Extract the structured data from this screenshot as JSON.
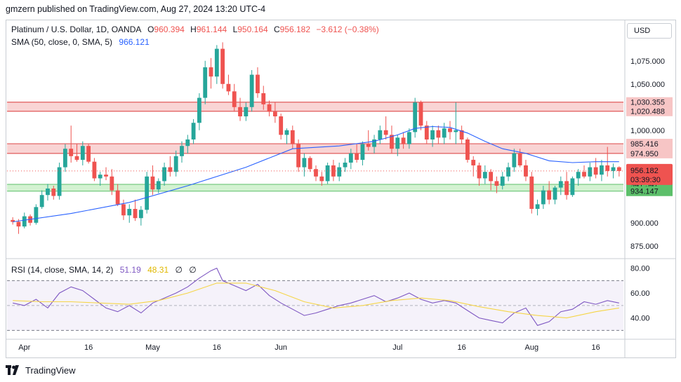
{
  "publisher_line": "gmzern published on TradingView.com, Aug 27, 2024 13:20 UTC-4",
  "currency_button": "USD",
  "footer": {
    "brand": "TradingView"
  },
  "legend": {
    "symbol": "Platinum / U.S. Dollar, 1D, OANDA",
    "o_label": "O",
    "o_value": "960.394",
    "h_label": "H",
    "h_value": "961.144",
    "l_label": "L",
    "l_value": "950.164",
    "c_label": "C",
    "c_value": "956.182",
    "change": "−3.612 (−0.38%)",
    "sma_label": "SMA (50, close, 0, SMA, 5)",
    "sma_value": "966.121",
    "rsi_label": "RSI (14, close, SMA, 14, 2)",
    "rsi_value": "51.19",
    "rsi_ma_value": "48.31",
    "rsi_extra1": "∅",
    "rsi_extra2": "∅"
  },
  "colors": {
    "up": "#26a69a",
    "down": "#ef5350",
    "sma": "#2962ff",
    "rsi": "#7e57c2",
    "rsi_ma": "#f5d547",
    "resistance_fill": "#f7c5c5",
    "support_fill": "#c8efc5",
    "zone_line": "#e05b5b",
    "support_line": "#5cbf6a"
  },
  "chart_data": [
    {
      "type": "candlestick",
      "title": "Platinum / U.S. Dollar, 1D, OANDA",
      "ylim": [
        862,
        1118
      ],
      "y_ticks": [
        875,
        900,
        925,
        950,
        975,
        1000,
        1025,
        1050,
        1075
      ],
      "y_tick_labels": [
        "875.000",
        "900.000",
        "",
        "",
        "",
        "1,000.000",
        "",
        "1,050.000",
        "1,075.000"
      ],
      "x_tick_labels": [
        {
          "label": "Apr",
          "index": 2
        },
        {
          "label": "16",
          "index": 13
        },
        {
          "label": "May",
          "index": 24
        },
        {
          "label": "16",
          "index": 35
        },
        {
          "label": "Jun",
          "index": 46
        },
        {
          "label": "Jul",
          "index": 66
        },
        {
          "label": "16",
          "index": 77
        },
        {
          "label": "Aug",
          "index": 89
        },
        {
          "label": "16",
          "index": 100
        }
      ],
      "candles": [
        [
          903,
          906,
          898,
          901
        ],
        [
          901,
          904,
          888,
          896
        ],
        [
          896,
          911,
          894,
          907
        ],
        [
          907,
          909,
          897,
          900
        ],
        [
          900,
          920,
          898,
          917
        ],
        [
          917,
          935,
          915,
          930
        ],
        [
          930,
          942,
          924,
          937
        ],
        [
          937,
          940,
          925,
          929
        ],
        [
          929,
          965,
          925,
          960
        ],
        [
          960,
          985,
          955,
          980
        ],
        [
          980,
          1005,
          965,
          972
        ],
        [
          972,
          985,
          966,
          968
        ],
        [
          968,
          988,
          962,
          983
        ],
        [
          983,
          985,
          964,
          966
        ],
        [
          966,
          970,
          945,
          948
        ],
        [
          948,
          955,
          940,
          952
        ],
        [
          952,
          960,
          946,
          950
        ],
        [
          950,
          958,
          930,
          935
        ],
        [
          935,
          942,
          918,
          920
        ],
        [
          920,
          925,
          903,
          908
        ],
        [
          908,
          920,
          900,
          915
        ],
        [
          915,
          925,
          902,
          905
        ],
        [
          905,
          918,
          897,
          914
        ],
        [
          914,
          955,
          910,
          950
        ],
        [
          950,
          962,
          930,
          936
        ],
        [
          936,
          948,
          932,
          945
        ],
        [
          945,
          965,
          940,
          960
        ],
        [
          960,
          972,
          950,
          955
        ],
        [
          955,
          978,
          950,
          972
        ],
        [
          972,
          988,
          965,
          983
        ],
        [
          983,
          995,
          975,
          990
        ],
        [
          990,
          1012,
          985,
          1008
        ],
        [
          1008,
          1040,
          1000,
          1035
        ],
        [
          1035,
          1075,
          1028,
          1068
        ],
        [
          1068,
          1078,
          1045,
          1058
        ],
        [
          1058,
          1092,
          1050,
          1088
        ],
        [
          1088,
          1095,
          1045,
          1050
        ],
        [
          1050,
          1060,
          1038,
          1042
        ],
        [
          1042,
          1050,
          1020,
          1025
        ],
        [
          1025,
          1035,
          1010,
          1015
        ],
        [
          1015,
          1030,
          1010,
          1025
        ],
        [
          1025,
          1065,
          1020,
          1060
        ],
        [
          1060,
          1068,
          1035,
          1040
        ],
        [
          1040,
          1048,
          1022,
          1028
        ],
        [
          1028,
          1032,
          1015,
          1020
        ],
        [
          1020,
          1030,
          1008,
          1015
        ],
        [
          1015,
          1018,
          990,
          995
        ],
        [
          995,
          1002,
          985,
          1000
        ],
        [
          1000,
          1005,
          980,
          985
        ],
        [
          985,
          990,
          955,
          960
        ],
        [
          960,
          975,
          950,
          970
        ],
        [
          970,
          972,
          955,
          958
        ],
        [
          958,
          962,
          945,
          950
        ],
        [
          950,
          955,
          940,
          945
        ],
        [
          945,
          965,
          942,
          962
        ],
        [
          962,
          968,
          945,
          950
        ],
        [
          950,
          965,
          945,
          960
        ],
        [
          960,
          970,
          955,
          965
        ],
        [
          965,
          980,
          958,
          975
        ],
        [
          975,
          985,
          965,
          968
        ],
        [
          968,
          988,
          962,
          985
        ],
        [
          985,
          1000,
          978,
          982
        ],
        [
          982,
          995,
          975,
          990
        ],
        [
          990,
          1005,
          985,
          1000
        ],
        [
          1000,
          1015,
          990,
          995
        ],
        [
          995,
          1005,
          975,
          980
        ],
        [
          980,
          995,
          972,
          992
        ],
        [
          992,
          998,
          980,
          985
        ],
        [
          985,
          1002,
          980,
          998
        ],
        [
          998,
          1035,
          992,
          1030
        ],
        [
          1030,
          1032,
          1000,
          1005
        ],
        [
          1005,
          1010,
          985,
          990
        ],
        [
          990,
          1005,
          982,
          1000
        ],
        [
          1000,
          1005,
          985,
          992
        ],
        [
          992,
          1008,
          985,
          1002
        ],
        [
          1002,
          1010,
          990,
          998
        ],
        [
          998,
          1030,
          985,
          1000
        ],
        [
          1000,
          1005,
          985,
          990
        ],
        [
          990,
          992,
          965,
          968
        ],
        [
          968,
          972,
          950,
          962
        ],
        [
          962,
          965,
          940,
          948
        ],
        [
          948,
          962,
          942,
          955
        ],
        [
          955,
          958,
          935,
          945
        ],
        [
          945,
          950,
          932,
          940
        ],
        [
          940,
          955,
          936,
          950
        ],
        [
          950,
          965,
          945,
          960
        ],
        [
          960,
          980,
          955,
          975
        ],
        [
          975,
          980,
          960,
          962
        ],
        [
          962,
          968,
          945,
          950
        ],
        [
          950,
          955,
          910,
          915
        ],
        [
          915,
          925,
          908,
          920
        ],
        [
          920,
          940,
          915,
          935
        ],
        [
          935,
          945,
          920,
          925
        ],
        [
          925,
          940,
          920,
          938
        ],
        [
          938,
          950,
          930,
          945
        ],
        [
          945,
          955,
          925,
          930
        ],
        [
          930,
          950,
          928,
          948
        ],
        [
          948,
          958,
          940,
          955
        ],
        [
          955,
          962,
          948,
          950
        ],
        [
          950,
          965,
          945,
          960
        ],
        [
          960,
          970,
          948,
          952
        ],
        [
          952,
          968,
          945,
          962
        ],
        [
          962,
          982,
          950,
          956
        ],
        [
          956,
          964,
          948,
          960
        ],
        [
          960,
          961,
          950,
          956
        ]
      ],
      "sma_50": [
        [
          0,
          901
        ],
        [
          10,
          910
        ],
        [
          20,
          922
        ],
        [
          30,
          940
        ],
        [
          40,
          960
        ],
        [
          48,
          980
        ],
        [
          56,
          983
        ],
        [
          62,
          988
        ],
        [
          66,
          995
        ],
        [
          69,
          1002
        ],
        [
          72,
          1004
        ],
        [
          75,
          1003
        ],
        [
          78,
          997
        ],
        [
          81,
          988
        ],
        [
          84,
          980
        ],
        [
          88,
          975
        ],
        [
          92,
          967
        ],
        [
          96,
          965
        ],
        [
          100,
          966
        ],
        [
          104,
          966
        ]
      ],
      "price_label": "956.182",
      "countdown": "03:39:30",
      "resistance_zones": [
        {
          "top": 1030.355,
          "bottom": 1020.488,
          "top_label": "1,030.355",
          "bottom_label": "1,020.488"
        },
        {
          "top": 985.416,
          "bottom": 974.95,
          "top_label": "985.416",
          "bottom_label": "974.950"
        }
      ],
      "support_zone": {
        "top": 941.547,
        "bottom": 934.147,
        "top_label": "941.547",
        "bottom_label": "934.147"
      }
    },
    {
      "type": "line",
      "title": "RSI (14, close, SMA, 14, 2)",
      "ylim": [
        24,
        86
      ],
      "y_tick_labels": [
        "80.00",
        "60.00",
        "40.00"
      ],
      "y_ticks": [
        80,
        60,
        40
      ],
      "bands": {
        "upper": 70,
        "middle": 50,
        "lower": 30
      },
      "series": [
        {
          "name": "RSI",
          "points": [
            [
              0,
              52
            ],
            [
              2,
              50
            ],
            [
              4,
              55
            ],
            [
              6,
              48
            ],
            [
              8,
              60
            ],
            [
              10,
              65
            ],
            [
              12,
              62
            ],
            [
              14,
              55
            ],
            [
              16,
              48
            ],
            [
              18,
              45
            ],
            [
              20,
              50
            ],
            [
              22,
              44
            ],
            [
              24,
              52
            ],
            [
              26,
              56
            ],
            [
              28,
              60
            ],
            [
              30,
              65
            ],
            [
              32,
              72
            ],
            [
              34,
              78
            ],
            [
              35,
              80
            ],
            [
              36,
              70
            ],
            [
              38,
              66
            ],
            [
              40,
              62
            ],
            [
              42,
              67
            ],
            [
              44,
              58
            ],
            [
              46,
              52
            ],
            [
              48,
              47
            ],
            [
              50,
              42
            ],
            [
              52,
              44
            ],
            [
              54,
              47
            ],
            [
              56,
              50
            ],
            [
              58,
              52
            ],
            [
              60,
              55
            ],
            [
              62,
              58
            ],
            [
              64,
              53
            ],
            [
              66,
              56
            ],
            [
              68,
              60
            ],
            [
              70,
              55
            ],
            [
              72,
              52
            ],
            [
              74,
              54
            ],
            [
              76,
              52
            ],
            [
              78,
              46
            ],
            [
              80,
              40
            ],
            [
              82,
              38
            ],
            [
              84,
              36
            ],
            [
              86,
              44
            ],
            [
              88,
              48
            ],
            [
              90,
              34
            ],
            [
              92,
              37
            ],
            [
              94,
              45
            ],
            [
              96,
              47
            ],
            [
              98,
              53
            ],
            [
              100,
              51
            ],
            [
              102,
              54
            ],
            [
              104,
              52
            ]
          ]
        },
        {
          "name": "RSI-based MA",
          "points": [
            [
              0,
              54
            ],
            [
              5,
              53
            ],
            [
              10,
              53
            ],
            [
              15,
              52
            ],
            [
              20,
              51
            ],
            [
              25,
              54
            ],
            [
              30,
              60
            ],
            [
              35,
              68
            ],
            [
              40,
              68
            ],
            [
              45,
              62
            ],
            [
              50,
              53
            ],
            [
              55,
              48
            ],
            [
              60,
              50
            ],
            [
              65,
              54
            ],
            [
              70,
              56
            ],
            [
              75,
              54
            ],
            [
              80,
              49
            ],
            [
              85,
              45
            ],
            [
              90,
              42
            ],
            [
              95,
              40
            ],
            [
              100,
              45
            ],
            [
              104,
              48
            ]
          ]
        }
      ]
    }
  ]
}
